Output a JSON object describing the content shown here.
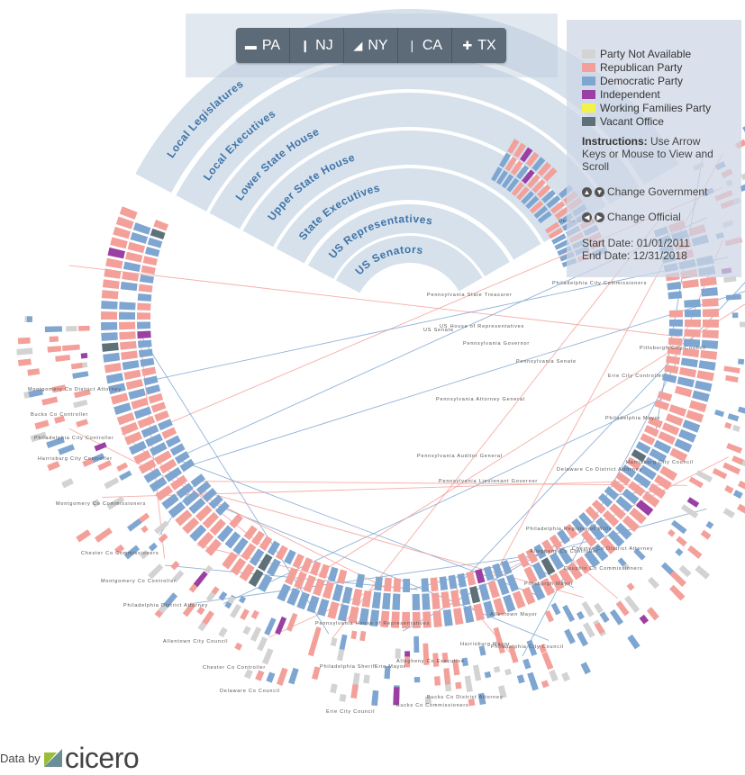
{
  "states": [
    {
      "code": "PA",
      "icon": "pennsylvania-icon"
    },
    {
      "code": "NJ",
      "icon": "new-jersey-icon"
    },
    {
      "code": "NY",
      "icon": "new-york-icon"
    },
    {
      "code": "CA",
      "icon": "california-icon"
    },
    {
      "code": "TX",
      "icon": "texas-icon"
    }
  ],
  "legend": {
    "items": [
      {
        "label": "Party Not Available",
        "color": "#d3d3d3"
      },
      {
        "label": "Republican Party",
        "color": "#f4a09a"
      },
      {
        "label": "Democratic Party",
        "color": "#7fa6d1"
      },
      {
        "label": "Independent",
        "color": "#9b3fa3"
      },
      {
        "label": "Working Families Party",
        "color": "#f2f24b"
      },
      {
        "label": "Vacant Office",
        "color": "#5e7179"
      }
    ],
    "instructions_title": "Instructions:",
    "instructions_text": "Use Arrow Keys or Mouse to View and Scroll",
    "change_government": "Change Government",
    "change_official": "Change Official",
    "start_date": "Start Date: 01/01/2011",
    "end_date": "End Date: 12/31/2018"
  },
  "rings": [
    "Local Legislatures",
    "Local Executives",
    "Lower State House",
    "Upper State House",
    "State Executives",
    "US Representatives",
    "US Senators"
  ],
  "office_labels": [
    "Pennsylvania State Treasurer",
    "US House of Representatives",
    "US Senate",
    "Pennsylvania Governor",
    "Pennsylvania Senate",
    "Pennsylvania Attorney General",
    "Pennsylvania Auditor General",
    "Pennsylvania Lieutenant Governor",
    "Philadelphia City Commissioners",
    "Pittsburgh City Council",
    "Erie City Controller",
    "Philadelphia Mayor",
    "Harrisburg City Council",
    "Delaware Co District Attorney",
    "Philadelphia Register of Wills",
    "Chester Co District Attorney",
    "Allegheny Co Controller",
    "Dauphin Co Commissioners",
    "Pittsburgh Mayor",
    "Allentown Mayor",
    "Harrisburg Mayor",
    "Philadelphia City Council",
    "Allegheny Co Executive",
    "Philadelphia Sheriff",
    "Erie Mayor",
    "Bucks Co District Attorney",
    "Bucks Co Commissioners",
    "Erie City Council",
    "Delaware Co Council",
    "Chester Co Controller",
    "Allentown City Council",
    "Philadelphia District Attorney",
    "Montgomery Co Controller",
    "Chester Co Commissioners",
    "Montgomery Co Commissioners",
    "Harrisburg City Controller",
    "Philadelphia City Controller",
    "Bucks Co Controller",
    "Montgomery Co District Attorney",
    "Pennsylvania House of Representatives",
    "Delaware Co"
  ],
  "footer": {
    "data_by": "Data by",
    "brand": "cicero"
  }
}
